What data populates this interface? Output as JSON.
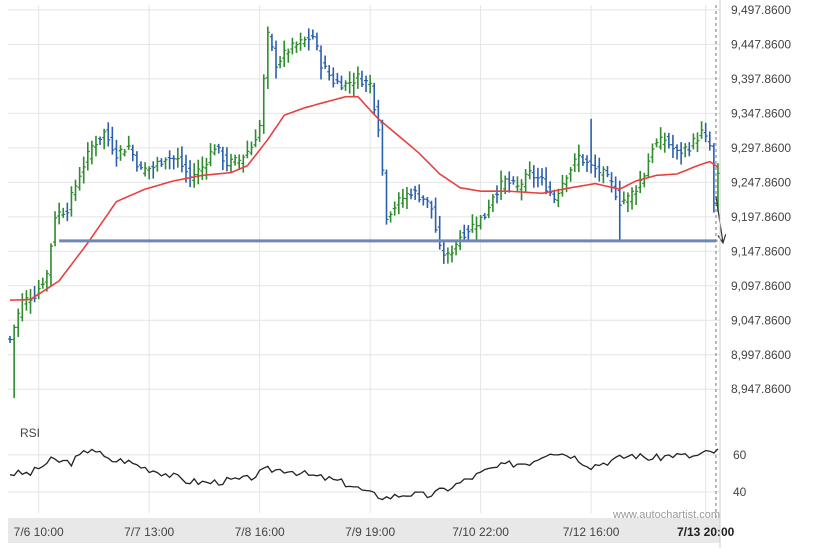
{
  "chart_data": {
    "type": "ohlc",
    "symbol": "",
    "y_ticks": [
      "9,497.8600",
      "9,447.8600",
      "9,397.8600",
      "9,347.8600",
      "9,297.8600",
      "9,247.8600",
      "9,197.8600",
      "9,147.8600",
      "9,097.8600",
      "9,047.8600",
      "8,997.8600",
      "8,947.8600"
    ],
    "y_tick_values": [
      9497.86,
      9447.86,
      9397.86,
      9347.86,
      9297.86,
      9247.86,
      9197.86,
      9147.86,
      9097.86,
      9047.86,
      8997.86,
      8947.86
    ],
    "ylim": [
      8925,
      9505
    ],
    "x_ticks": [
      "7/6 10:00",
      "7/7 13:00",
      "7/8 16:00",
      "7/9 19:00",
      "7/10 22:00",
      "7/12 16:00",
      "7/13 20:00"
    ],
    "x_tick_bar_index": [
      7,
      34,
      61,
      88,
      115,
      142,
      170
    ],
    "bar_count": 174,
    "current_x_tick": "7/13 20:00",
    "ohlc_anchors": [
      {
        "i": 0,
        "c": 9020
      },
      {
        "i": 3,
        "c": 9075
      },
      {
        "i": 6,
        "c": 9085
      },
      {
        "i": 9,
        "c": 9115
      },
      {
        "i": 11,
        "c": 9200
      },
      {
        "i": 14,
        "c": 9210
      },
      {
        "i": 17,
        "c": 9260
      },
      {
        "i": 20,
        "c": 9300
      },
      {
        "i": 23,
        "c": 9320
      },
      {
        "i": 26,
        "c": 9290
      },
      {
        "i": 29,
        "c": 9300
      },
      {
        "i": 32,
        "c": 9265
      },
      {
        "i": 35,
        "c": 9270
      },
      {
        "i": 38,
        "c": 9285
      },
      {
        "i": 41,
        "c": 9280
      },
      {
        "i": 44,
        "c": 9255
      },
      {
        "i": 47,
        "c": 9270
      },
      {
        "i": 50,
        "c": 9300
      },
      {
        "i": 53,
        "c": 9275
      },
      {
        "i": 56,
        "c": 9280
      },
      {
        "i": 59,
        "c": 9300
      },
      {
        "i": 61,
        "c": 9330
      },
      {
        "i": 63,
        "c": 9460
      },
      {
        "i": 65,
        "c": 9420
      },
      {
        "i": 68,
        "c": 9440
      },
      {
        "i": 71,
        "c": 9450
      },
      {
        "i": 74,
        "c": 9460
      },
      {
        "i": 76,
        "c": 9420
      },
      {
        "i": 79,
        "c": 9395
      },
      {
        "i": 82,
        "c": 9390
      },
      {
        "i": 85,
        "c": 9400
      },
      {
        "i": 88,
        "c": 9390
      },
      {
        "i": 90,
        "c": 9330
      },
      {
        "i": 92,
        "c": 9200
      },
      {
        "i": 95,
        "c": 9220
      },
      {
        "i": 98,
        "c": 9235
      },
      {
        "i": 101,
        "c": 9225
      },
      {
        "i": 103,
        "c": 9210
      },
      {
        "i": 105,
        "c": 9150
      },
      {
        "i": 107,
        "c": 9140
      },
      {
        "i": 110,
        "c": 9170
      },
      {
        "i": 113,
        "c": 9185
      },
      {
        "i": 116,
        "c": 9200
      },
      {
        "i": 118,
        "c": 9230
      },
      {
        "i": 121,
        "c": 9250
      },
      {
        "i": 124,
        "c": 9240
      },
      {
        "i": 127,
        "c": 9260
      },
      {
        "i": 130,
        "c": 9250
      },
      {
        "i": 133,
        "c": 9225
      },
      {
        "i": 136,
        "c": 9260
      },
      {
        "i": 139,
        "c": 9285
      },
      {
        "i": 142,
        "c": 9270
      },
      {
        "i": 145,
        "c": 9260
      },
      {
        "i": 147,
        "c": 9245
      },
      {
        "i": 149,
        "c": 9220
      },
      {
        "i": 151,
        "c": 9225
      },
      {
        "i": 153,
        "c": 9240
      },
      {
        "i": 155,
        "c": 9260
      },
      {
        "i": 157,
        "c": 9300
      },
      {
        "i": 160,
        "c": 9310
      },
      {
        "i": 163,
        "c": 9290
      },
      {
        "i": 166,
        "c": 9300
      },
      {
        "i": 169,
        "c": 9320
      },
      {
        "i": 171,
        "c": 9300
      },
      {
        "i": 172,
        "c": 9215
      },
      {
        "i": 173,
        "c": 9255
      }
    ],
    "moving_average_anchors": [
      {
        "i": 0,
        "v": 9077
      },
      {
        "i": 5,
        "v": 9078
      },
      {
        "i": 12,
        "v": 9105
      },
      {
        "i": 19,
        "v": 9160
      },
      {
        "i": 26,
        "v": 9220
      },
      {
        "i": 33,
        "v": 9238
      },
      {
        "i": 40,
        "v": 9250
      },
      {
        "i": 47,
        "v": 9258
      },
      {
        "i": 54,
        "v": 9262
      },
      {
        "i": 58,
        "v": 9272
      },
      {
        "i": 63,
        "v": 9310
      },
      {
        "i": 67,
        "v": 9345
      },
      {
        "i": 72,
        "v": 9356
      },
      {
        "i": 77,
        "v": 9364
      },
      {
        "i": 82,
        "v": 9372
      },
      {
        "i": 85,
        "v": 9372
      },
      {
        "i": 90,
        "v": 9340
      },
      {
        "i": 95,
        "v": 9315
      },
      {
        "i": 100,
        "v": 9290
      },
      {
        "i": 105,
        "v": 9260
      },
      {
        "i": 110,
        "v": 9240
      },
      {
        "i": 115,
        "v": 9235
      },
      {
        "i": 122,
        "v": 9235
      },
      {
        "i": 130,
        "v": 9232
      },
      {
        "i": 137,
        "v": 9240
      },
      {
        "i": 143,
        "v": 9246
      },
      {
        "i": 149,
        "v": 9238
      },
      {
        "i": 153,
        "v": 9250
      },
      {
        "i": 158,
        "v": 9258
      },
      {
        "i": 163,
        "v": 9260
      },
      {
        "i": 168,
        "v": 9272
      },
      {
        "i": 171,
        "v": 9278
      },
      {
        "i": 173,
        "v": 9270
      }
    ],
    "support_level": 9163,
    "support_start_bar": 12,
    "forecast_end_value": 9160,
    "rsi": {
      "label": "RSI",
      "y_ticks": [
        "60",
        "40"
      ],
      "y_tick_values": [
        60,
        40
      ],
      "ylim": [
        33,
        68
      ],
      "anchors": [
        {
          "i": 0,
          "v": 50
        },
        {
          "i": 5,
          "v": 50
        },
        {
          "i": 10,
          "v": 57
        },
        {
          "i": 15,
          "v": 56
        },
        {
          "i": 20,
          "v": 64
        },
        {
          "i": 24,
          "v": 57
        },
        {
          "i": 28,
          "v": 57
        },
        {
          "i": 33,
          "v": 53
        },
        {
          "i": 38,
          "v": 50
        },
        {
          "i": 43,
          "v": 46
        },
        {
          "i": 48,
          "v": 45
        },
        {
          "i": 53,
          "v": 46
        },
        {
          "i": 58,
          "v": 47
        },
        {
          "i": 63,
          "v": 52
        },
        {
          "i": 68,
          "v": 52
        },
        {
          "i": 73,
          "v": 49
        },
        {
          "i": 78,
          "v": 47
        },
        {
          "i": 83,
          "v": 44
        },
        {
          "i": 88,
          "v": 39
        },
        {
          "i": 92,
          "v": 37
        },
        {
          "i": 97,
          "v": 39
        },
        {
          "i": 102,
          "v": 38
        },
        {
          "i": 107,
          "v": 42
        },
        {
          "i": 112,
          "v": 47
        },
        {
          "i": 117,
          "v": 52
        },
        {
          "i": 122,
          "v": 55
        },
        {
          "i": 127,
          "v": 56
        },
        {
          "i": 132,
          "v": 62
        },
        {
          "i": 137,
          "v": 60
        },
        {
          "i": 142,
          "v": 54
        },
        {
          "i": 147,
          "v": 57
        },
        {
          "i": 152,
          "v": 60
        },
        {
          "i": 157,
          "v": 58
        },
        {
          "i": 162,
          "v": 60
        },
        {
          "i": 167,
          "v": 59
        },
        {
          "i": 170,
          "v": 61
        },
        {
          "i": 173,
          "v": 62
        }
      ]
    },
    "watermark": "www.autochartist.com",
    "colors": {
      "up_bar": "#2e8b2e",
      "down_bar": "#2a5fb0",
      "moving_average": "#e84040",
      "support_line": "#6f87b6",
      "rsi_line": "#222222",
      "grid": "#e4e4e4",
      "axis_text": "#444444",
      "forecast_arrow": "#333333",
      "axis_band": "#e8e8e8"
    }
  }
}
